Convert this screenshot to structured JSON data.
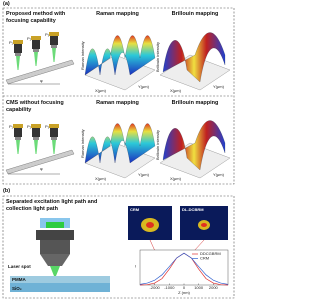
{
  "panel_a": {
    "label": "(a)",
    "rows": [
      {
        "title": "Proposed method with focusing capability",
        "raman_title": "Raman mapping",
        "brillouin_title": "Brillouin mapping",
        "probes": [
          "P₁",
          "P₂",
          "P₃"
        ],
        "angle": "φ",
        "raman_zlabel": "Raman intensity",
        "brillouin_zlabel": "Brillouin intensity",
        "xlabel": "X(μm)",
        "ylabel": "Y(μm)"
      },
      {
        "title": "CMS without focusing capability",
        "raman_title": "Raman mapping",
        "brillouin_title": "Brillouin mapping",
        "probes": [
          "P₁",
          "P₂",
          "P₃"
        ],
        "angle": "φ",
        "raman_zlabel": "Raman intensity",
        "brillouin_zlabel": "Brillouin intensity",
        "xlabel": "X(μm)",
        "ylabel": "Y(μm)"
      }
    ]
  },
  "panel_b": {
    "label": "(b)",
    "title": "Separated excitation light path and collection light path",
    "laser_spot": "Laser spot",
    "pmma": "PMMA",
    "sio2": "SiO₂",
    "images": [
      "CRM",
      "DL-DCBRM"
    ],
    "plot": {
      "xlabel": "Z (nm)",
      "ylabel": "I",
      "xlim": [
        -3000,
        3000
      ],
      "ylim": [
        0,
        1.1
      ],
      "xticks": [
        -2000,
        -1000,
        0,
        1000,
        2000
      ],
      "x": [
        -3000,
        -2500,
        -2000,
        -1500,
        -1000,
        -500,
        0,
        500,
        1000,
        1500,
        2000,
        2500,
        3000
      ],
      "series": [
        {
          "name": "DDCGBRM",
          "color": "#e03030",
          "values": [
            0,
            0.01,
            0.06,
            0.2,
            0.5,
            0.85,
            1,
            0.85,
            0.5,
            0.2,
            0.06,
            0.01,
            0
          ]
        },
        {
          "name": "CRM",
          "color": "#3060d0",
          "values": [
            0.02,
            0.06,
            0.15,
            0.32,
            0.58,
            0.85,
            1,
            0.85,
            0.58,
            0.32,
            0.15,
            0.06,
            0.02
          ]
        }
      ]
    }
  }
}
